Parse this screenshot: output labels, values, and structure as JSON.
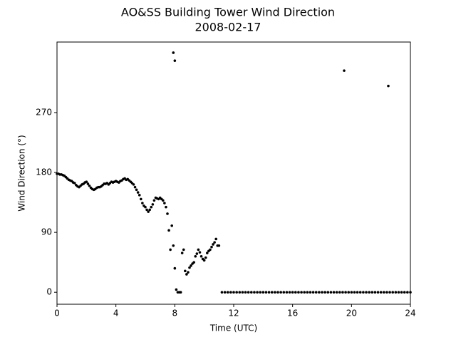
{
  "chart_data": {
    "type": "scatter",
    "title": "AO&SS Building Tower Wind Direction",
    "subtitle": "2008-02-17",
    "xlabel": "Time (UTC)",
    "ylabel": "Wind Direction (°)",
    "color": "#000000",
    "xlim": [
      0,
      24
    ],
    "xticks": [
      0,
      4,
      8,
      12,
      16,
      20,
      24
    ],
    "ylim": [
      -18,
      376
    ],
    "yticks": [
      0,
      90,
      180,
      270
    ],
    "x": [
      0,
      0.1,
      0.2,
      0.3,
      0.4,
      0.5,
      0.6,
      0.7,
      0.8,
      0.9,
      1,
      1.1,
      1.2,
      1.3,
      1.4,
      1.5,
      1.6,
      1.7,
      1.8,
      1.9,
      2,
      2.1,
      2.2,
      2.3,
      2.4,
      2.5,
      2.6,
      2.7,
      2.8,
      2.9,
      3,
      3.1,
      3.2,
      3.3,
      3.4,
      3.5,
      3.6,
      3.7,
      3.8,
      3.9,
      4,
      4.1,
      4.2,
      4.3,
      4.4,
      4.5,
      4.6,
      4.7,
      4.8,
      4.9,
      5,
      5.1,
      5.2,
      5.3,
      5.4,
      5.5,
      5.6,
      5.7,
      5.8,
      5.9,
      6,
      6.1,
      6.2,
      6.3,
      6.4,
      6.5,
      6.6,
      6.7,
      6.8,
      6.9,
      7,
      7.1,
      7.2,
      7.3,
      7.4,
      7.5,
      7.6,
      7.7,
      7.8,
      7.9,
      8,
      8.1,
      8.2,
      8.3,
      8.4,
      8.5,
      8.6,
      8.7,
      8.8,
      8.9,
      9,
      9.1,
      9.2,
      9.3,
      9.4,
      9.5,
      9.6,
      9.7,
      9.8,
      9.9,
      10,
      10.1,
      10.2,
      10.3,
      10.4,
      10.5,
      10.6,
      10.7,
      10.8,
      10.9,
      11,
      7.9,
      8,
      19.5,
      22.5,
      11.2,
      11.4,
      11.6,
      11.8,
      12,
      12.2,
      12.4,
      12.6,
      12.8,
      13,
      13.2,
      13.4,
      13.6,
      13.8,
      14,
      14.2,
      14.4,
      14.6,
      14.8,
      15,
      15.2,
      15.4,
      15.6,
      15.8,
      16,
      16.2,
      16.4,
      16.6,
      16.8,
      17,
      17.2,
      17.4,
      17.6,
      17.8,
      18,
      18.2,
      18.4,
      18.6,
      18.8,
      19,
      19.2,
      19.4,
      19.6,
      19.8,
      20,
      20.2,
      20.4,
      20.6,
      20.8,
      21,
      21.2,
      21.4,
      21.6,
      21.8,
      22,
      22.2,
      22.4,
      22.6,
      22.8,
      23,
      23.2,
      23.4,
      23.6,
      23.8,
      24
    ],
    "values": [
      178,
      178,
      177,
      177,
      176,
      175,
      173,
      171,
      169,
      168,
      167,
      165,
      164,
      161,
      159,
      158,
      160,
      162,
      163,
      165,
      166,
      163,
      160,
      157,
      155,
      154,
      155,
      157,
      158,
      158,
      159,
      161,
      163,
      163,
      164,
      162,
      164,
      166,
      165,
      166,
      167,
      166,
      165,
      167,
      168,
      170,
      171,
      169,
      170,
      168,
      166,
      164,
      162,
      158,
      154,
      150,
      146,
      140,
      134,
      130,
      128,
      124,
      121,
      124,
      128,
      132,
      138,
      142,
      141,
      140,
      142,
      140,
      138,
      134,
      128,
      118,
      93,
      64,
      100,
      70,
      36,
      4,
      0,
      0,
      0,
      59,
      64,
      32,
      27,
      30,
      37,
      40,
      43,
      45,
      54,
      58,
      64,
      60,
      54,
      50,
      48,
      52,
      59,
      62,
      64,
      68,
      72,
      75,
      80,
      70,
      70,
      360,
      348,
      333,
      310,
      0,
      0,
      0,
      0,
      0,
      0,
      0,
      0,
      0,
      0,
      0,
      0,
      0,
      0,
      0,
      0,
      0,
      0,
      0,
      0,
      0,
      0,
      0,
      0,
      0,
      0,
      0,
      0,
      0,
      0,
      0,
      0,
      0,
      0,
      0,
      0,
      0,
      0,
      0,
      0,
      0,
      0,
      0,
      0,
      0,
      0,
      0,
      0,
      0,
      0,
      0,
      0,
      0,
      0,
      0,
      0,
      0,
      0,
      0,
      0,
      0,
      0,
      0,
      0,
      0
    ]
  }
}
